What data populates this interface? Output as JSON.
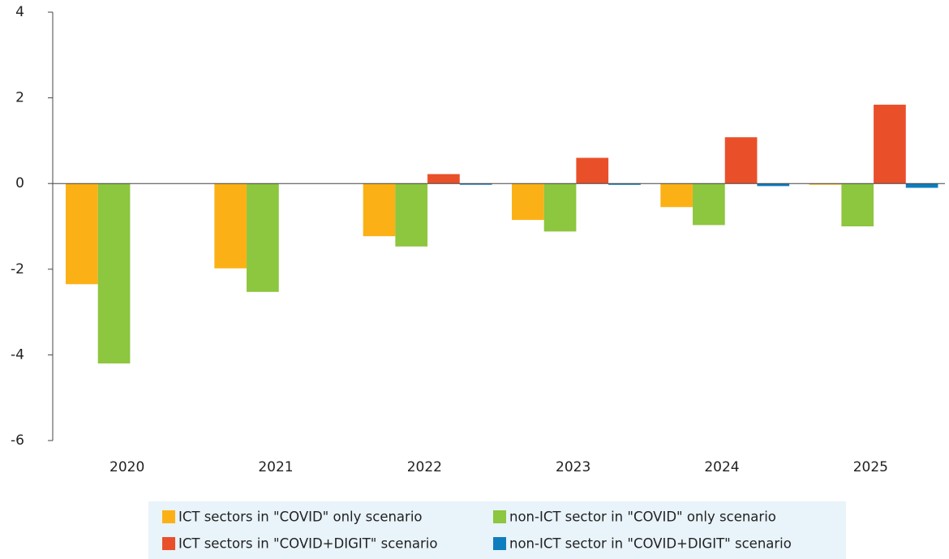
{
  "chart_data": {
    "type": "bar",
    "categories": [
      "2020",
      "2021",
      "2022",
      "2023",
      "2024",
      "2025"
    ],
    "series": [
      {
        "name": "ICT sectors in \"COVID\" only scenario",
        "color": "#fbb116",
        "values": [
          -2.35,
          -1.98,
          -1.23,
          -0.85,
          -0.55,
          -0.01
        ]
      },
      {
        "name": "non-ICT sector in \"COVID\" only scenario",
        "color": "#8dc63f",
        "values": [
          -4.2,
          -2.53,
          -1.47,
          -1.12,
          -0.97,
          -1.0
        ]
      },
      {
        "name": "ICT sectors in \"COVID+DIGIT\" scenario",
        "color": "#e9502a",
        "values": [
          null,
          null,
          0.22,
          0.6,
          1.08,
          1.84
        ]
      },
      {
        "name": "non-ICT sector in \"COVID+DIGIT\" scenario",
        "color": "#0e7dbd",
        "values": [
          null,
          null,
          -0.02,
          -0.03,
          -0.06,
          -0.1
        ]
      }
    ],
    "ylim": [
      -6,
      4
    ],
    "yticks": [
      -6,
      -4,
      -2,
      0,
      2,
      4
    ],
    "legend": "bottom"
  }
}
